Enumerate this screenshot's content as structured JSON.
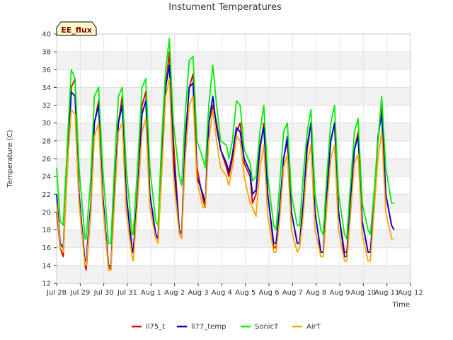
{
  "chart_data": {
    "type": "line",
    "title": "Instument Temperatures",
    "xlabel": "Time",
    "ylabel": "Temperature (C)",
    "badge": "EE_flux",
    "ylim": [
      12,
      40
    ],
    "yticks": [
      12,
      14,
      16,
      18,
      20,
      22,
      24,
      26,
      28,
      30,
      32,
      34,
      36,
      38,
      40
    ],
    "xlim": [
      0,
      15
    ],
    "xticks": [
      {
        "v": 0,
        "label": "Jul 28"
      },
      {
        "v": 1,
        "label": "Jul 29"
      },
      {
        "v": 2,
        "label": "Jul 30"
      },
      {
        "v": 3,
        "label": "Jul 31"
      },
      {
        "v": 4,
        "label": "Aug 1"
      },
      {
        "v": 5,
        "label": "Aug 2"
      },
      {
        "v": 6,
        "label": "Aug 3"
      },
      {
        "v": 7,
        "label": "Aug 4"
      },
      {
        "v": 8,
        "label": "Aug 5"
      },
      {
        "v": 9,
        "label": "Aug 6"
      },
      {
        "v": 10,
        "label": "Aug 7"
      },
      {
        "v": 11,
        "label": "Aug 8"
      },
      {
        "v": 12,
        "label": "Aug 9"
      },
      {
        "v": 13,
        "label": "Aug 10"
      },
      {
        "v": 14,
        "label": "Aug 11"
      },
      {
        "v": 15,
        "label": "Aug 12"
      }
    ],
    "grid": true,
    "legend_position": "bottom",
    "series": [
      {
        "name": "li75_t",
        "color": "#dd0000",
        "x": [
          0.0,
          0.15,
          0.28,
          0.48,
          0.62,
          0.78,
          0.95,
          1.2,
          1.25,
          1.45,
          1.6,
          1.78,
          1.95,
          2.2,
          2.3,
          2.45,
          2.62,
          2.78,
          2.95,
          3.2,
          3.25,
          3.45,
          3.62,
          3.78,
          3.95,
          4.2,
          4.3,
          4.45,
          4.62,
          4.78,
          4.95,
          5.2,
          5.3,
          5.45,
          5.62,
          5.78,
          5.95,
          6.2,
          6.3,
          6.45,
          6.62,
          6.78,
          6.95,
          7.2,
          7.3,
          7.45,
          7.62,
          7.78,
          7.95,
          8.2,
          8.3,
          8.45,
          8.62,
          8.78,
          8.95,
          9.2,
          9.3,
          9.45,
          9.62,
          9.78,
          9.95,
          10.2,
          10.3,
          10.45,
          10.62,
          10.78,
          10.95,
          11.2,
          11.3,
          11.45,
          11.62,
          11.78,
          11.95,
          12.2,
          12.3,
          12.45,
          12.62,
          12.78,
          12.95,
          13.2,
          13.3,
          13.45,
          13.62,
          13.78,
          13.95,
          14.2,
          14.3
        ],
        "y": [
          20.0,
          16.0,
          15.0,
          27.0,
          34.0,
          35.0,
          22.0,
          14.0,
          13.5,
          20.0,
          30.0,
          32.5,
          22.0,
          14.0,
          13.5,
          22.0,
          30.0,
          33.0,
          22.0,
          16.0,
          15.5,
          23.0,
          32.0,
          33.5,
          22.0,
          17.5,
          17.0,
          26.0,
          34.0,
          38.0,
          28.0,
          18.0,
          17.5,
          28.0,
          34.0,
          35.5,
          25.0,
          21.5,
          20.5,
          30.0,
          32.0,
          30.0,
          27.0,
          25.0,
          24.0,
          26.0,
          29.0,
          30.0,
          25.5,
          24.0,
          21.0,
          22.0,
          27.0,
          30.0,
          22.0,
          16.0,
          16.0,
          20.0,
          26.0,
          28.0,
          20.0,
          16.5,
          16.5,
          21.0,
          27.0,
          30.0,
          20.0,
          15.5,
          15.5,
          22.0,
          28.0,
          30.0,
          20.0,
          15.5,
          15.5,
          21.0,
          27.0,
          29.0,
          19.0,
          15.5,
          15.5,
          21.0,
          28.0,
          32.0,
          22.0,
          18.5,
          18.0
        ]
      },
      {
        "name": "li77_temp",
        "color": "#0000cc",
        "x": [
          0.0,
          0.15,
          0.28,
          0.48,
          0.62,
          0.78,
          0.95,
          1.2,
          1.25,
          1.45,
          1.6,
          1.78,
          1.95,
          2.2,
          2.3,
          2.45,
          2.62,
          2.78,
          2.95,
          3.2,
          3.25,
          3.45,
          3.62,
          3.78,
          3.95,
          4.2,
          4.3,
          4.45,
          4.62,
          4.78,
          4.95,
          5.2,
          5.3,
          5.45,
          5.62,
          5.78,
          5.95,
          6.2,
          6.3,
          6.45,
          6.62,
          6.78,
          6.95,
          7.2,
          7.3,
          7.45,
          7.62,
          7.78,
          7.95,
          8.2,
          8.3,
          8.45,
          8.62,
          8.78,
          8.95,
          9.2,
          9.3,
          9.45,
          9.62,
          9.78,
          9.95,
          10.2,
          10.3,
          10.45,
          10.62,
          10.78,
          10.95,
          11.2,
          11.3,
          11.45,
          11.62,
          11.78,
          11.95,
          12.2,
          12.3,
          12.45,
          12.62,
          12.78,
          12.95,
          13.2,
          13.3,
          13.45,
          13.62,
          13.78,
          13.95,
          14.2,
          14.3
        ],
        "y": [
          22.0,
          16.5,
          16.0,
          26.0,
          33.5,
          33.0,
          22.0,
          14.5,
          14.5,
          21.0,
          30.0,
          32.0,
          22.0,
          14.0,
          14.0,
          22.0,
          30.0,
          32.0,
          22.0,
          15.5,
          15.5,
          23.0,
          31.0,
          32.5,
          22.0,
          17.5,
          17.0,
          25.0,
          34.0,
          36.5,
          26.0,
          18.0,
          17.5,
          28.0,
          34.0,
          34.5,
          24.0,
          22.0,
          21.0,
          30.0,
          33.0,
          29.5,
          27.0,
          25.5,
          24.5,
          26.5,
          29.5,
          29.0,
          26.0,
          24.5,
          22.0,
          22.5,
          27.5,
          29.5,
          22.0,
          16.5,
          16.5,
          20.5,
          26.0,
          28.5,
          20.0,
          16.5,
          16.5,
          21.0,
          27.5,
          30.0,
          20.0,
          15.5,
          15.5,
          22.0,
          28.0,
          30.0,
          20.0,
          15.0,
          15.0,
          21.0,
          27.0,
          28.5,
          19.0,
          15.5,
          15.5,
          21.0,
          28.5,
          31.0,
          22.0,
          18.5,
          18.0
        ]
      },
      {
        "name": "SonicT",
        "color": "#00ee00",
        "x": [
          0.0,
          0.15,
          0.28,
          0.48,
          0.62,
          0.78,
          0.95,
          1.2,
          1.25,
          1.45,
          1.6,
          1.78,
          1.95,
          2.2,
          2.3,
          2.45,
          2.62,
          2.78,
          2.95,
          3.2,
          3.25,
          3.45,
          3.62,
          3.78,
          3.95,
          4.2,
          4.3,
          4.45,
          4.62,
          4.78,
          4.95,
          5.2,
          5.3,
          5.45,
          5.62,
          5.78,
          5.95,
          6.2,
          6.3,
          6.45,
          6.62,
          6.78,
          6.95,
          7.2,
          7.3,
          7.45,
          7.62,
          7.78,
          7.95,
          8.2,
          8.3,
          8.45,
          8.62,
          8.78,
          8.95,
          9.2,
          9.3,
          9.45,
          9.62,
          9.78,
          9.95,
          10.2,
          10.3,
          10.45,
          10.62,
          10.78,
          10.95,
          11.2,
          11.3,
          11.45,
          11.62,
          11.78,
          11.95,
          12.2,
          12.3,
          12.45,
          12.62,
          12.78,
          12.95,
          13.2,
          13.3,
          13.45,
          13.62,
          13.78,
          13.95,
          14.2,
          14.3
        ],
        "y": [
          25.0,
          19.0,
          18.5,
          29.0,
          36.0,
          35.0,
          25.0,
          17.0,
          17.0,
          24.0,
          33.0,
          34.0,
          25.0,
          16.5,
          16.5,
          25.0,
          33.0,
          34.0,
          25.0,
          17.5,
          17.5,
          26.0,
          34.0,
          35.0,
          25.0,
          19.0,
          18.5,
          28.0,
          36.0,
          39.5,
          30.0,
          24.0,
          23.0,
          31.0,
          37.0,
          37.5,
          28.0,
          26.0,
          25.0,
          32.0,
          36.5,
          32.0,
          28.0,
          27.5,
          26.0,
          28.0,
          32.5,
          32.0,
          27.0,
          25.5,
          23.5,
          24.0,
          29.0,
          32.0,
          24.0,
          18.5,
          18.0,
          23.0,
          29.0,
          30.0,
          22.0,
          18.5,
          18.5,
          24.0,
          29.0,
          31.5,
          22.0,
          18.0,
          17.5,
          24.0,
          30.0,
          32.0,
          22.0,
          17.5,
          17.0,
          23.0,
          29.0,
          30.5,
          21.0,
          18.0,
          17.5,
          22.0,
          28.0,
          33.0,
          25.0,
          21.0,
          21.0
        ]
      },
      {
        "name": "AirT",
        "color": "#ffa500",
        "x": [
          0.0,
          0.15,
          0.28,
          0.48,
          0.62,
          0.78,
          0.95,
          1.2,
          1.25,
          1.45,
          1.6,
          1.78,
          1.95,
          2.2,
          2.3,
          2.45,
          2.62,
          2.78,
          2.95,
          3.2,
          3.25,
          3.45,
          3.62,
          3.78,
          3.95,
          4.2,
          4.3,
          4.45,
          4.62,
          4.78,
          4.95,
          5.2,
          5.3,
          5.45,
          5.62,
          5.78,
          5.95,
          6.2,
          6.3,
          6.45,
          6.62,
          6.78,
          6.95,
          7.2,
          7.3,
          7.45,
          7.62,
          7.78,
          7.95,
          8.2,
          8.3,
          8.45,
          8.62,
          8.78,
          8.95,
          9.2,
          9.3,
          9.45,
          9.62,
          9.78,
          9.95,
          10.2,
          10.3,
          10.45,
          10.62,
          10.78,
          10.95,
          11.2,
          11.3,
          11.45,
          11.62,
          11.78,
          11.95,
          12.2,
          12.3,
          12.45,
          12.62,
          12.78,
          12.95,
          13.2,
          13.3,
          13.45,
          13.62,
          13.78,
          13.95,
          14.2,
          14.3
        ],
        "y": [
          21.0,
          16.0,
          15.5,
          26.0,
          31.5,
          31.0,
          21.0,
          14.0,
          14.0,
          20.0,
          28.5,
          30.0,
          21.0,
          13.5,
          13.5,
          21.0,
          29.0,
          30.0,
          20.0,
          15.0,
          14.5,
          22.0,
          29.0,
          30.5,
          20.5,
          17.0,
          16.5,
          24.0,
          33.0,
          35.0,
          24.0,
          17.5,
          17.0,
          26.0,
          32.0,
          33.0,
          23.5,
          20.5,
          20.5,
          28.0,
          31.5,
          28.0,
          25.0,
          24.0,
          23.0,
          25.0,
          28.5,
          28.0,
          24.0,
          21.0,
          20.5,
          19.5,
          25.0,
          27.5,
          19.5,
          15.5,
          15.5,
          19.0,
          25.0,
          26.5,
          18.0,
          15.5,
          16.0,
          19.5,
          25.5,
          27.5,
          18.0,
          15.0,
          15.0,
          20.5,
          26.0,
          27.5,
          18.0,
          14.5,
          14.5,
          19.5,
          25.5,
          26.5,
          17.5,
          14.5,
          14.5,
          20.0,
          26.0,
          29.0,
          20.0,
          17.0,
          17.0
        ]
      }
    ]
  }
}
